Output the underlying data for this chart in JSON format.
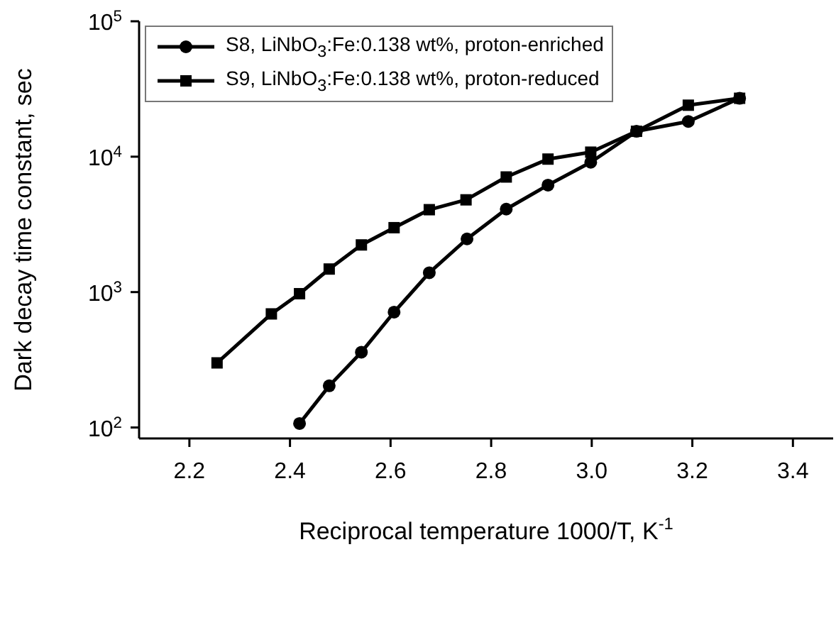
{
  "chart_data": {
    "type": "line",
    "xlabel": "Reciprocal temperature 1000/T, K$^{-1}$",
    "ylabel": "Dark decay time constant, sec",
    "log": "y",
    "xlim": [
      2.1,
      3.48
    ],
    "xticks": [
      {
        "value": 2.2,
        "label": "2.2"
      },
      {
        "value": 2.4,
        "label": "2.4"
      },
      {
        "value": 2.6,
        "label": "2.6"
      },
      {
        "value": 2.8,
        "label": "2.8"
      },
      {
        "value": 3.0,
        "label": "3.0"
      },
      {
        "value": 3.2,
        "label": "3.2"
      },
      {
        "value": 3.4,
        "label": "3.4"
      }
    ],
    "ylim": [
      83,
      100000
    ],
    "yticks": [
      {
        "value": 100,
        "label": "10$^{2}$"
      },
      {
        "value": 1000,
        "label": "10$^{3}$"
      },
      {
        "value": 10000,
        "label": "10$^{4}$"
      },
      {
        "value": 100000,
        "label": "10$^{5}$"
      }
    ],
    "legend": "top left",
    "line_style": "solid",
    "series": [
      {
        "name": "S8, LiNbO$_{3}$:Fe:0.138 wt%, proton-enriched",
        "color": "#000000",
        "marker": "circle",
        "x": [
          2.419,
          2.478,
          2.542,
          2.607,
          2.677,
          2.752,
          2.83,
          2.913,
          2.998,
          3.089,
          3.192,
          3.294
        ],
        "values": [
          107,
          203,
          360,
          711,
          1390,
          2470,
          4100,
          6170,
          9090,
          15400,
          18200,
          27000
        ]
      },
      {
        "name": "S9, LiNbO$_{3}$:Fe:0.138 wt%, proton-reduced",
        "color": "#000000",
        "marker": "square",
        "x": [
          2.255,
          2.363,
          2.419,
          2.478,
          2.542,
          2.607,
          2.677,
          2.75,
          2.83,
          2.913,
          2.998,
          3.089,
          3.192,
          3.294
        ],
        "values": [
          300,
          690,
          973,
          1480,
          2230,
          2990,
          4060,
          4800,
          7080,
          9600,
          10800,
          15400,
          24000,
          27000
        ]
      }
    ]
  }
}
